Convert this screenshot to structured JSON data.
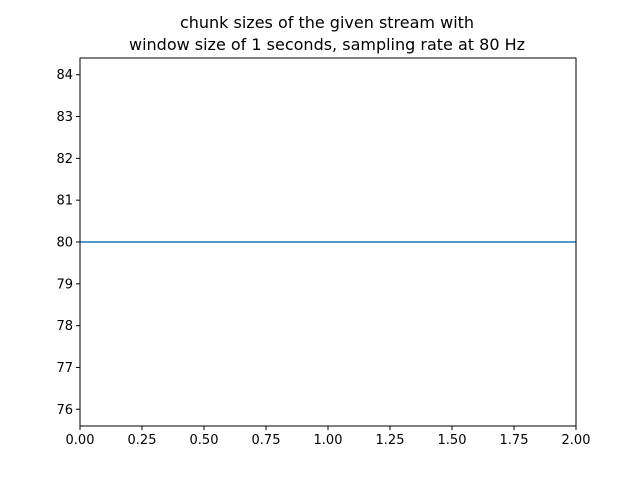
{
  "chart_data": {
    "type": "line",
    "title": "chunk sizes of the given stream with\nwindow size of 1 seconds, sampling rate at 80 Hz",
    "title_lines": [
      "chunk sizes of the given stream with",
      "window size of 1 seconds, sampling rate at 80 Hz"
    ],
    "xlabel": "",
    "ylabel": "",
    "xlim": [
      0,
      2
    ],
    "ylim": [
      75.6,
      84.4
    ],
    "x_ticks": [
      "0.00",
      "0.25",
      "0.50",
      "0.75",
      "1.00",
      "1.25",
      "1.50",
      "1.75",
      "2.00"
    ],
    "y_ticks": [
      "76",
      "77",
      "78",
      "79",
      "80",
      "81",
      "82",
      "83",
      "84"
    ],
    "grid": false,
    "series": [
      {
        "color": "#1f77b4",
        "x": [
          0,
          1,
          2
        ],
        "y": [
          80,
          80,
          80
        ]
      }
    ]
  }
}
